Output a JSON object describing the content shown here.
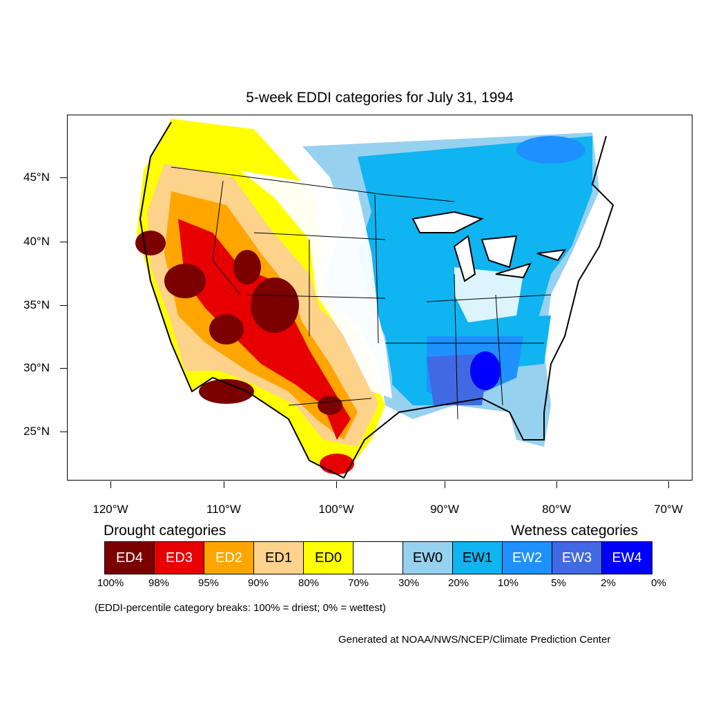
{
  "title": "5-week EDDI categories for July 31, 1994",
  "lat_labels": [
    "45°N",
    "40°N",
    "35°N",
    "30°N",
    "25°N"
  ],
  "lon_labels": [
    "120°W",
    "110°W",
    "100°W",
    "90°W",
    "80°W",
    "70°W"
  ],
  "legend": {
    "drought_heading": "Drought categories",
    "wetness_heading": "Wetness categories",
    "categories": [
      {
        "label": "ED4",
        "color": "#7b0000",
        "text_color": "#ffffff"
      },
      {
        "label": "ED3",
        "color": "#e60000",
        "text_color": "#ffffff"
      },
      {
        "label": "ED2",
        "color": "#ffa500",
        "text_color": "#ffffff"
      },
      {
        "label": "ED1",
        "color": "#fdd28a",
        "text_color": "#000000"
      },
      {
        "label": "ED0",
        "color": "#ffff00",
        "text_color": "#000000"
      },
      {
        "label": "",
        "color": "#ffffff",
        "text_color": "#000000"
      },
      {
        "label": "EW0",
        "color": "#97d1f0",
        "text_color": "#000000"
      },
      {
        "label": "EW1",
        "color": "#0fb4f0",
        "text_color": "#000000"
      },
      {
        "label": "EW2",
        "color": "#1e90ff",
        "text_color": "#ffffff"
      },
      {
        "label": "EW3",
        "color": "#4169e1",
        "text_color": "#ffffff"
      },
      {
        "label": "EW4",
        "color": "#0000ff",
        "text_color": "#ffffff"
      }
    ],
    "breaks": [
      "100%",
      "98%",
      "95%",
      "90%",
      "80%",
      "70%",
      "30%",
      "20%",
      "10%",
      "5%",
      "2%",
      "0%"
    ]
  },
  "note": "(EDDI-percentile category breaks: 100% = driest; 0% = wettest)",
  "credit": "Generated at NOAA/NWS/NCEP/Climate Prediction Center"
}
